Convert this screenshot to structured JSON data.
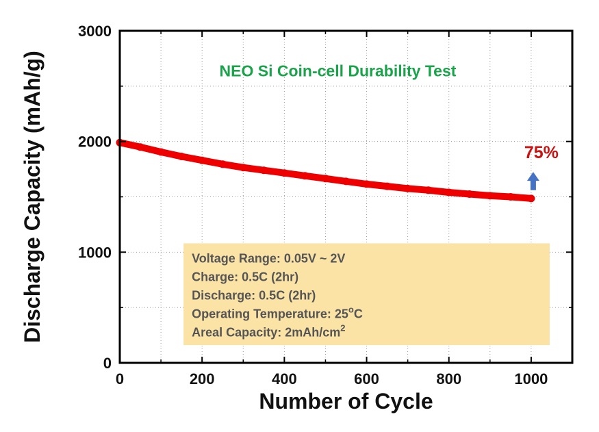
{
  "chart_data": {
    "type": "line",
    "title": "NEO Si Coin-cell Durability Test",
    "xlabel": "Number of Cycle",
    "ylabel": "Discharge Capacity (mAh/g)",
    "xlim": [
      0,
      1100
    ],
    "ylim": [
      0,
      3000
    ],
    "x_ticks": [
      0,
      200,
      400,
      600,
      800,
      1000
    ],
    "y_ticks": [
      0,
      1000,
      2000,
      3000
    ],
    "x_tick_labels": [
      "0",
      "200",
      "400",
      "600",
      "800",
      "1000"
    ],
    "y_tick_labels": [
      "0",
      "1000",
      "2000",
      "3000"
    ],
    "grid": true,
    "series": [
      {
        "name": "Discharge Capacity",
        "x": [
          0,
          50,
          100,
          150,
          200,
          250,
          300,
          350,
          400,
          450,
          500,
          550,
          600,
          650,
          700,
          750,
          800,
          850,
          900,
          950,
          1000
        ],
        "y": [
          1990,
          1950,
          1905,
          1865,
          1830,
          1795,
          1765,
          1740,
          1715,
          1690,
          1665,
          1640,
          1615,
          1595,
          1575,
          1560,
          1540,
          1525,
          1510,
          1500,
          1485
        ]
      }
    ],
    "annotation": {
      "text": "75%",
      "arrow_direction": "up"
    },
    "info_box": {
      "lines": [
        {
          "text": "Voltage Range: 0.05V ~ 2V"
        },
        {
          "text": "Charge: 0.5C (2hr)"
        },
        {
          "text": "Discharge: 0.5C (2hr)"
        },
        {
          "text": "Operating Temperature: 25",
          "sup": "o",
          "tail": "C"
        },
        {
          "text": "Areal Capacity: 2mAh/cm",
          "sup": "2",
          "tail": ""
        }
      ]
    },
    "colors": {
      "series": "#ee0000",
      "title": "#1aa34a",
      "annotation": "#cc1111",
      "arrow": "#4472c4",
      "info_box": "#fbe3a6",
      "info_text": "#555555"
    }
  }
}
